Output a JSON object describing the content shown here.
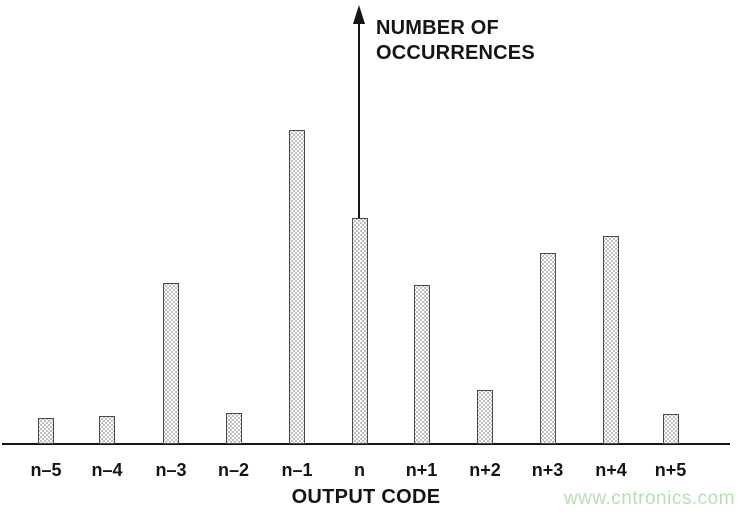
{
  "chart_data": {
    "type": "bar",
    "categories": [
      "n–5",
      "n–4",
      "n–3",
      "n–2",
      "n–1",
      "n",
      "n+1",
      "n+2",
      "n+3",
      "n+4",
      "n+5"
    ],
    "values": [
      26,
      28,
      161,
      31,
      314,
      226,
      159,
      54,
      191,
      208,
      30
    ],
    "title": "",
    "xlabel": "OUTPUT CODE",
    "ylabel_lines": [
      "NUMBER OF",
      "OCCURRENCES"
    ],
    "ylim": [
      0,
      438
    ],
    "grid": false,
    "legend": null,
    "axis_style": "arrow-y-axis-through-center-bar, unscaled y-axis, no tick marks"
  },
  "watermark": "www.cntronics.com",
  "colors": {
    "text": "#151515",
    "axis": "#151515",
    "bar_border": "#4a4a4a",
    "bar_fill": "#fbfbfb",
    "bar_dot": "#8a8a8a",
    "watermark_green": "#b8e0b5"
  }
}
